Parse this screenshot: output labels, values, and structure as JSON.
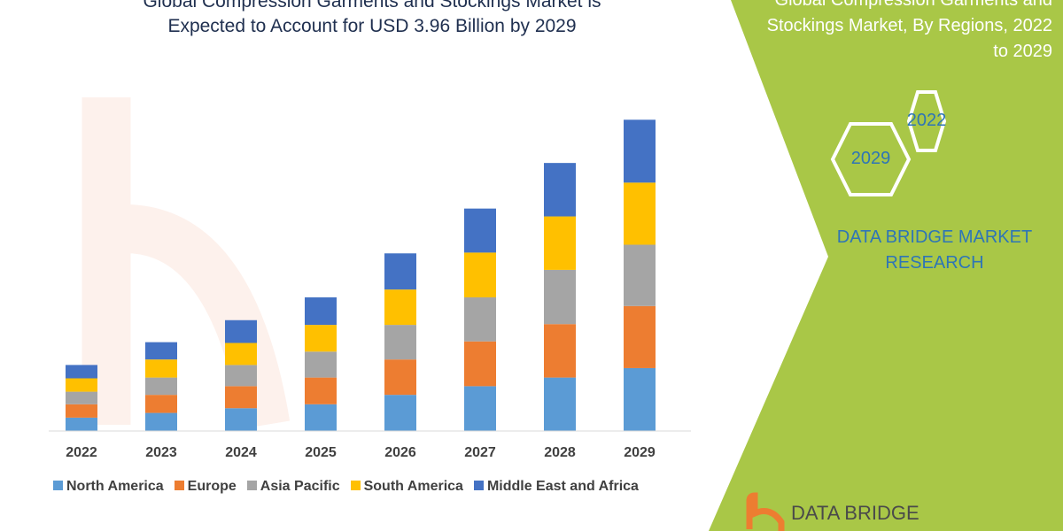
{
  "title": "Global Compression Garments and Stockings Market is Expected to Account for USD 3.96 Billion by 2029",
  "title_lines": [
    "Global Compression Garments and Stockings Market is",
    "Expected to Account for USD 3.96 Billion by 2029"
  ],
  "side_panel": {
    "title_lines": [
      "Global Compression Garments and",
      "Stockings Market, By Regions, 2022",
      "to 2029"
    ],
    "hex_labels": [
      "2022",
      "2029"
    ],
    "brand_lines": [
      "DATA BRIDGE MARKET",
      "RESEARCH"
    ],
    "logo_text": "DATA BRIDGE",
    "panel_color": "#a9c747"
  },
  "watermark": "DATA BRIDGE",
  "chart_data": {
    "type": "bar",
    "stacked": true,
    "title": "Global Compression Garments and Stockings Market is Expected to Account for USD 3.96 Billion by 2029",
    "xlabel": "",
    "ylabel": "",
    "categories": [
      "2022",
      "2023",
      "2024",
      "2025",
      "2026",
      "2027",
      "2028",
      "2029"
    ],
    "series": [
      {
        "name": "North America",
        "color": "#5b9bd5",
        "values": [
          0.17,
          0.23,
          0.29,
          0.34,
          0.46,
          0.57,
          0.68,
          0.8
        ]
      },
      {
        "name": "Europe",
        "color": "#ed7d31",
        "values": [
          0.17,
          0.23,
          0.28,
          0.34,
          0.45,
          0.57,
          0.68,
          0.79
        ]
      },
      {
        "name": "Asia Pacific",
        "color": "#a5a5a5",
        "values": [
          0.16,
          0.22,
          0.27,
          0.33,
          0.44,
          0.56,
          0.69,
          0.78
        ]
      },
      {
        "name": "South America",
        "color": "#ffc000",
        "values": [
          0.17,
          0.23,
          0.28,
          0.34,
          0.45,
          0.57,
          0.68,
          0.79
        ]
      },
      {
        "name": "Middle East and Africa",
        "color": "#4472c4",
        "values": [
          0.17,
          0.22,
          0.29,
          0.35,
          0.46,
          0.56,
          0.68,
          0.8
        ]
      }
    ],
    "y_axis_shown": false,
    "grid": false,
    "legend": "bottom"
  }
}
